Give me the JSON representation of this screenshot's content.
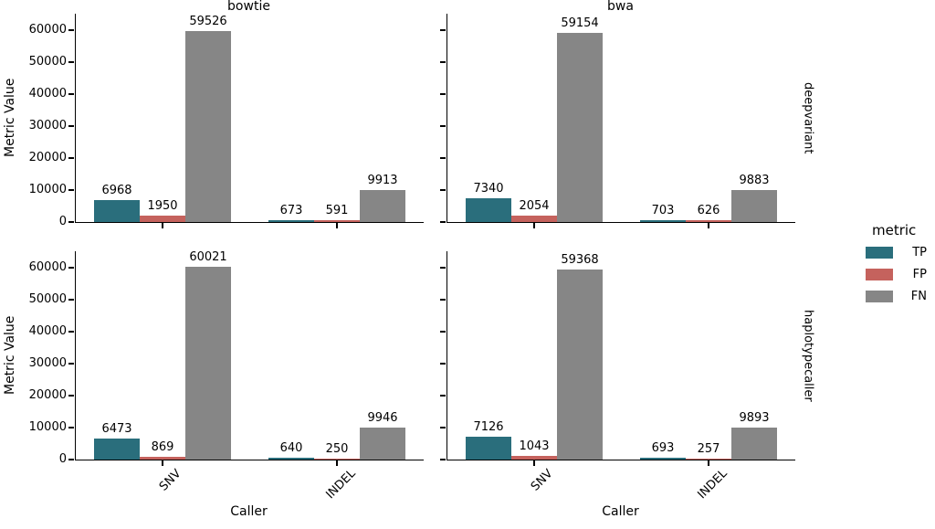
{
  "chart_data": {
    "type": "bar",
    "facet_cols": [
      "bowtie",
      "bwa"
    ],
    "facet_rows": [
      "deepvariant",
      "haplotypecaller"
    ],
    "categories": [
      "SNV",
      "INDEL"
    ],
    "xlabel": "Caller",
    "ylabel": "Metric Value",
    "ylim": [
      0,
      65000
    ],
    "yticks": [
      0,
      10000,
      20000,
      30000,
      40000,
      50000,
      60000
    ],
    "grid": false,
    "legend": {
      "title": "metric",
      "position": "right",
      "entries": [
        {
          "label": "TP",
          "color": "#2a6e7c"
        },
        {
          "label": "FP",
          "color": "#c5625d"
        },
        {
          "label": "FN",
          "color": "#868686"
        }
      ]
    },
    "panels": [
      {
        "col": "bowtie",
        "row": "deepvariant",
        "series": [
          {
            "name": "TP",
            "values": [
              6968,
              673
            ]
          },
          {
            "name": "FP",
            "values": [
              1950,
              591
            ]
          },
          {
            "name": "FN",
            "values": [
              59526,
              9913
            ]
          }
        ]
      },
      {
        "col": "bwa",
        "row": "deepvariant",
        "series": [
          {
            "name": "TP",
            "values": [
              7340,
              703
            ]
          },
          {
            "name": "FP",
            "values": [
              2054,
              626
            ]
          },
          {
            "name": "FN",
            "values": [
              59154,
              9883
            ]
          }
        ]
      },
      {
        "col": "bowtie",
        "row": "haplotypecaller",
        "series": [
          {
            "name": "TP",
            "values": [
              6473,
              640
            ]
          },
          {
            "name": "FP",
            "values": [
              869,
              250
            ]
          },
          {
            "name": "FN",
            "values": [
              60021,
              9946
            ]
          }
        ]
      },
      {
        "col": "bwa",
        "row": "haplotypecaller",
        "series": [
          {
            "name": "TP",
            "values": [
              7126,
              693
            ]
          },
          {
            "name": "FP",
            "values": [
              1043,
              257
            ]
          },
          {
            "name": "FN",
            "values": [
              59368,
              9893
            ]
          }
        ]
      }
    ]
  }
}
